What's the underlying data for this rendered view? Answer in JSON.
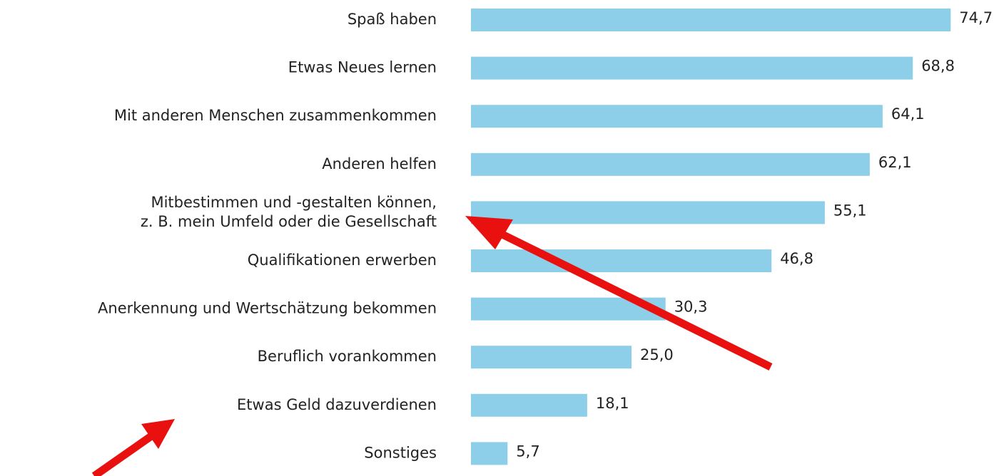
{
  "chart_data": {
    "type": "bar",
    "orientation": "horizontal",
    "categories": [
      "Spaß haben",
      "Etwas Neues lernen",
      "Mit anderen Menschen zusammenkommen",
      "Anderen helfen",
      "Mitbestimmen und -gestalten können,\nz. B. mein Umfeld oder die Gesellschaft",
      "Qualifikationen erwerben",
      "Anerkennung und Wertschätzung bekommen",
      "Beruflich vorankommen",
      "Etwas Geld dazuverdienen",
      "Sonstiges"
    ],
    "values": [
      74.7,
      68.8,
      64.1,
      62.1,
      55.1,
      46.8,
      30.3,
      25.0,
      18.1,
      5.7
    ],
    "value_labels": [
      "74,7",
      "68,8",
      "64,1",
      "62,1",
      "55,1",
      "46,8",
      "30,3",
      "25,0",
      "18,1",
      "5,7"
    ],
    "color": "#8dcfe8"
  }
}
